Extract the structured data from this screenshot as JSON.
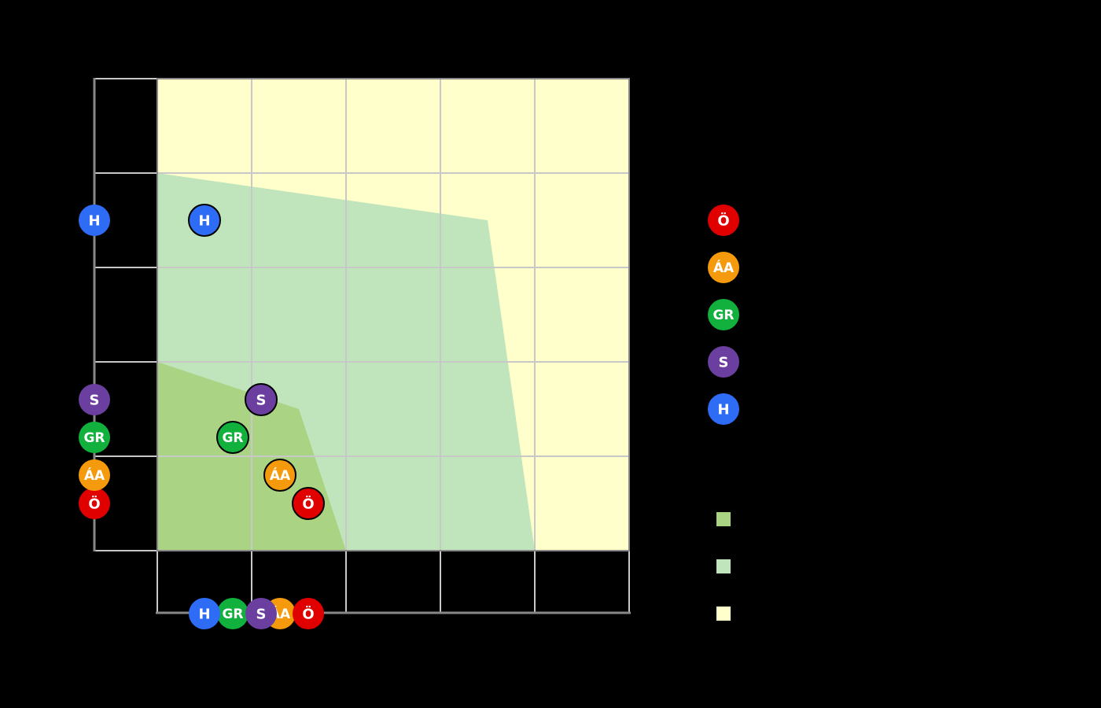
{
  "chart_data": {
    "type": "scatter",
    "title": "",
    "xlabel": "",
    "ylabel": "",
    "xlim": [
      0,
      5
    ],
    "ylim": [
      0,
      5
    ],
    "grid": true,
    "legend_position": "right",
    "plot_background": "#ffffcc",
    "regions": [
      {
        "name": "zone-1",
        "color": "#aad483",
        "polygon": [
          [
            0,
            0
          ],
          [
            0,
            2
          ],
          [
            1.5,
            1.5
          ],
          [
            2,
            0
          ]
        ]
      },
      {
        "name": "zone-2",
        "color": "#c0e4bb",
        "polygon": [
          [
            0,
            0
          ],
          [
            0,
            4
          ],
          [
            3.5,
            3.5
          ],
          [
            4,
            0
          ]
        ]
      },
      {
        "name": "zone-3",
        "color": "#ffffcc",
        "polygon": [
          [
            0,
            0
          ],
          [
            0,
            5
          ],
          [
            5,
            5
          ],
          [
            5,
            0
          ]
        ]
      }
    ],
    "series": [
      {
        "name": "Ö",
        "label": "Ö",
        "color": "#e00000",
        "x": 1.6,
        "y": 0.5
      },
      {
        "name": "ÁA",
        "label": "ÁA",
        "color": "#f59a0c",
        "x": 1.3,
        "y": 0.8
      },
      {
        "name": "GR",
        "label": "GR",
        "color": "#12b03c",
        "x": 0.8,
        "y": 1.2
      },
      {
        "name": "S",
        "label": "S",
        "color": "#6b3fa0",
        "x": 1.1,
        "y": 1.6
      },
      {
        "name": "H",
        "label": "H",
        "color": "#2f6cf5",
        "x": 0.5,
        "y": 3.5
      }
    ]
  },
  "legend": {
    "markers": [
      {
        "label": "Ö",
        "color": "#e00000"
      },
      {
        "label": "ÁA",
        "color": "#f59a0c"
      },
      {
        "label": "GR",
        "color": "#12b03c"
      },
      {
        "label": "S",
        "color": "#6b3fa0"
      },
      {
        "label": "H",
        "color": "#2f6cf5"
      }
    ],
    "swatches": [
      {
        "color": "#aad483"
      },
      {
        "color": "#c0e4bb"
      },
      {
        "color": "#ffffcc"
      }
    ]
  },
  "colors": {
    "background": "#000000",
    "grid": "#c8c8c8",
    "axis": "#888888",
    "marker_text": "#ffffff",
    "marker_stroke": "#000000"
  }
}
